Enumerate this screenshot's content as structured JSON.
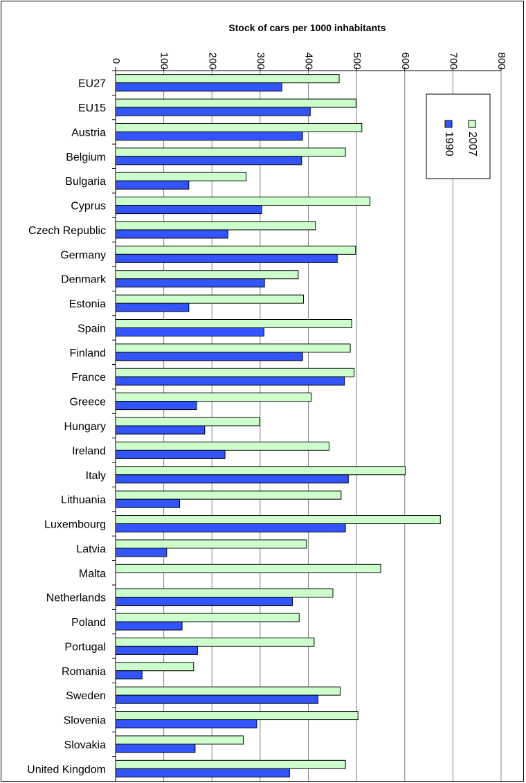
{
  "chart_data": {
    "type": "bar",
    "orientation": "horizontal",
    "title": "Stock of cars per 1000 inhabitants",
    "xlim": [
      0,
      800
    ],
    "ticks": [
      0,
      100,
      200,
      300,
      400,
      500,
      600,
      700,
      800
    ],
    "grid": true,
    "legend_position": "top-right",
    "categories": [
      "EU27",
      "EU15",
      "Austria",
      "Belgium",
      "Bulgaria",
      "Cyprus",
      "Czech Republic",
      "Germany",
      "Denmark",
      "Estonia",
      "Spain",
      "Finland",
      "France",
      "Greece",
      "Hungary",
      "Ireland",
      "Italy",
      "Lithuania",
      "Luxembourg",
      "Latvia",
      "Malta",
      "Netherlands",
      "Poland",
      "Portugal",
      "Romania",
      "Sweden",
      "Slovenia",
      "Slovakia",
      "United Kingdom"
    ],
    "series": [
      {
        "name": "2007",
        "color": "#ccffcc",
        "values": [
          464,
          499,
          511,
          477,
          271,
          528,
          415,
          498,
          379,
          390,
          490,
          487,
          495,
          406,
          299,
          443,
          601,
          468,
          674,
          396,
          550,
          451,
          381,
          412,
          162,
          466,
          503,
          265,
          477
        ]
      },
      {
        "name": "1990",
        "color": "#3355ff",
        "values": [
          345,
          404,
          388,
          386,
          152,
          303,
          233,
          460,
          309,
          152,
          308,
          388,
          475,
          168,
          185,
          227,
          483,
          133,
          477,
          106,
          0,
          367,
          138,
          170,
          55,
          420,
          293,
          165,
          361
        ]
      }
    ]
  }
}
